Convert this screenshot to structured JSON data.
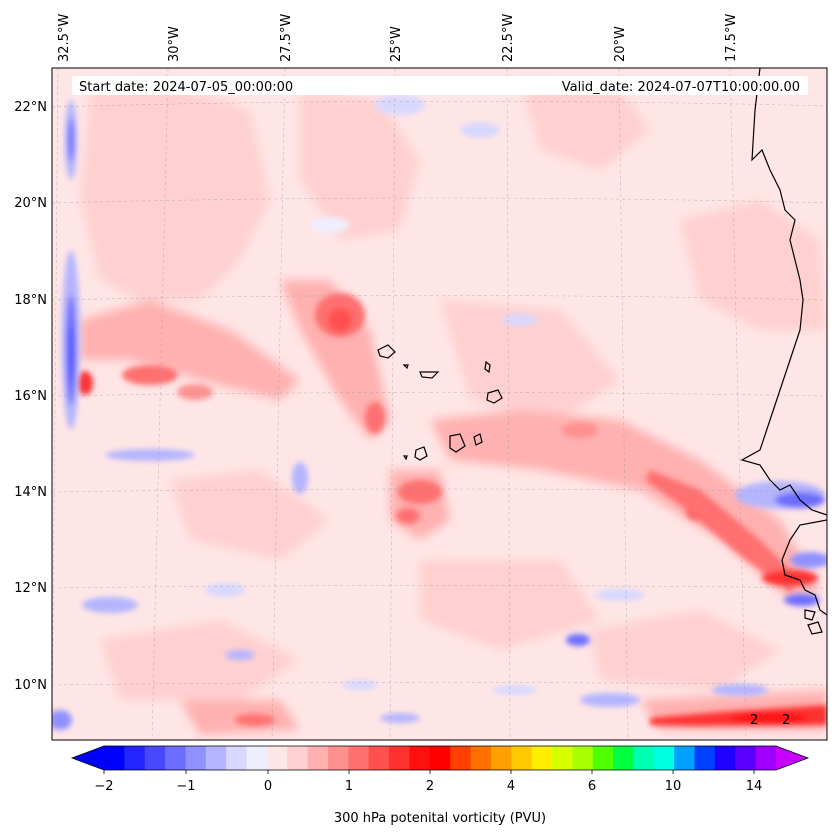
{
  "map": {
    "start_date": "Start date: 2024-07-05_00:00:00",
    "valid_date": "Valid_date: 2024-07-07T10:00:00.00",
    "lon_ticks": [
      "32.5°W",
      "30°W",
      "27.5°W",
      "25°W",
      "22.5°W",
      "20°W",
      "17.5°W"
    ],
    "lat_ticks": [
      "22°N",
      "20°N",
      "18°N",
      "16°N",
      "14°N",
      "12°N",
      "10°N"
    ],
    "contour_labels": [
      "2",
      "2"
    ]
  },
  "colorbar": {
    "label": "300 hPa potenital vorticity (PVU)",
    "tick_labels": [
      "−2",
      "−1",
      "0",
      "1",
      "2",
      "4",
      "6",
      "10",
      "14"
    ],
    "colors": [
      "#0000ff",
      "#2424ff",
      "#4848ff",
      "#6c6cff",
      "#9090ff",
      "#b4b4ff",
      "#d8d8ff",
      "#eeeeff",
      "#ffe6e6",
      "#ffd0d0",
      "#ffb0b0",
      "#ff9090",
      "#ff7070",
      "#ff5050",
      "#ff3030",
      "#ff1010",
      "#ff0000",
      "#ff4000",
      "#ff7000",
      "#ffa000",
      "#ffc800",
      "#ffee00",
      "#d8ff00",
      "#a8ff00",
      "#50ff00",
      "#00ff40",
      "#00ffb0",
      "#00ffe0",
      "#00a0ff",
      "#0040ff",
      "#2000ff",
      "#5a00ff",
      "#a000ff"
    ],
    "under_color": "#0000ff",
    "over_color": "#c800ff"
  }
}
